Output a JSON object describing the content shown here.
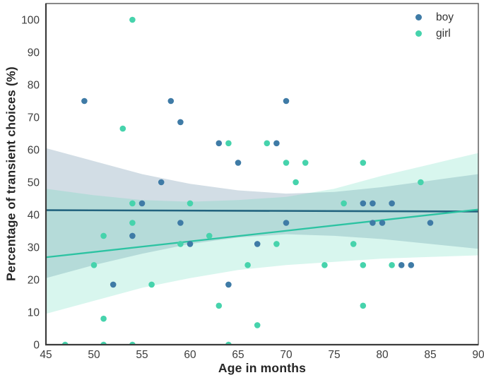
{
  "figure": {
    "background": "#ffffff"
  },
  "chart_data": {
    "type": "scatter",
    "title": "",
    "xlabel": "Age in months",
    "ylabel": "Percentage of transient choices (%)",
    "xlim": [
      45,
      90
    ],
    "ylim": [
      0,
      105
    ],
    "xticks": [
      45,
      50,
      55,
      60,
      65,
      70,
      75,
      80,
      85,
      90
    ],
    "yticks": [
      0,
      10,
      20,
      30,
      40,
      50,
      60,
      70,
      80,
      90,
      100
    ],
    "grid": false,
    "legend_position": "upper-right",
    "axis_text_color": "#3d3d3d",
    "spine_color": "#555555",
    "series": [
      {
        "name": "boy",
        "marker_color": "#3f7ba6",
        "line_color": "#23647f",
        "band_fill": "#7f9db5",
        "band_opacity": 0.35,
        "points": [
          [
            49,
            75
          ],
          [
            58,
            75
          ],
          [
            70,
            75
          ],
          [
            59,
            68.5
          ],
          [
            63,
            62
          ],
          [
            69,
            62
          ],
          [
            65,
            56
          ],
          [
            57,
            50
          ],
          [
            55,
            43.5
          ],
          [
            78,
            43.5
          ],
          [
            79,
            43.5
          ],
          [
            81,
            43.5
          ],
          [
            59,
            37.5
          ],
          [
            70,
            37.5
          ],
          [
            79,
            37.5
          ],
          [
            80,
            37.5
          ],
          [
            85,
            37.5
          ],
          [
            54,
            33.5
          ],
          [
            60,
            31
          ],
          [
            67,
            31
          ],
          [
            82,
            24.5
          ],
          [
            83,
            24.5
          ],
          [
            52,
            18.5
          ],
          [
            64,
            18.5
          ]
        ],
        "regression": {
          "x": [
            45,
            90
          ],
          "y": [
            41.4,
            41.0
          ]
        },
        "ci": {
          "x": [
            45,
            50,
            55,
            60,
            65,
            70,
            75,
            80,
            85,
            90
          ],
          "upper": [
            60.5,
            56.5,
            52.5,
            49.5,
            47.5,
            46.5,
            47,
            48.5,
            50.5,
            52.5
          ],
          "lower": [
            20.5,
            24.5,
            28,
            31,
            33,
            34,
            33.5,
            32.5,
            31,
            29.5
          ]
        }
      },
      {
        "name": "girl",
        "marker_color": "#46d3ac",
        "line_color": "#2cc3a2",
        "band_fill": "#4fd4b0",
        "band_opacity": 0.22,
        "points": [
          [
            54,
            100
          ],
          [
            53,
            66.5
          ],
          [
            64,
            62
          ],
          [
            68,
            62
          ],
          [
            70,
            56
          ],
          [
            72,
            56
          ],
          [
            78,
            56
          ],
          [
            71,
            50
          ],
          [
            84,
            50
          ],
          [
            54,
            43.5
          ],
          [
            60,
            43.5
          ],
          [
            76,
            43.5
          ],
          [
            54,
            37.5
          ],
          [
            51,
            33.5
          ],
          [
            62,
            33.5
          ],
          [
            59,
            31
          ],
          [
            69,
            31
          ],
          [
            77,
            31
          ],
          [
            50,
            24.5
          ],
          [
            66,
            24.5
          ],
          [
            74,
            24.5
          ],
          [
            78,
            24.5
          ],
          [
            81,
            24.5
          ],
          [
            56,
            18.5
          ],
          [
            63,
            12
          ],
          [
            78,
            12
          ],
          [
            51,
            8
          ],
          [
            67,
            6
          ],
          [
            47,
            0
          ],
          [
            51,
            0
          ],
          [
            54,
            0
          ],
          [
            64,
            0
          ]
        ],
        "regression": {
          "x": [
            45,
            90
          ],
          "y": [
            26.9,
            41.6
          ]
        },
        "ci": {
          "x": [
            45,
            50,
            55,
            60,
            65,
            70,
            75,
            80,
            85,
            90
          ],
          "upper": [
            48,
            46,
            44.5,
            44,
            44.5,
            45.5,
            48,
            52,
            55.5,
            59
          ],
          "lower": [
            9.5,
            13.5,
            17.5,
            20.5,
            23,
            24.5,
            25.5,
            26.5,
            27,
            27.5
          ]
        }
      }
    ]
  }
}
